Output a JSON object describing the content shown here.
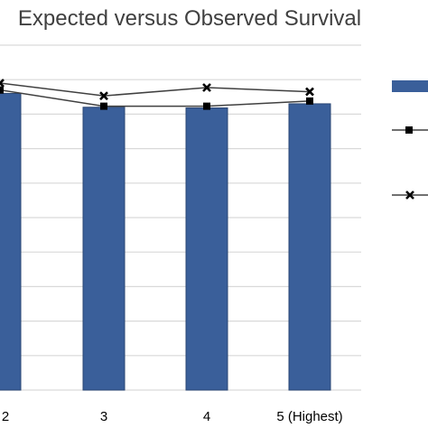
{
  "chart_data": {
    "type": "bar",
    "title": "Expected versus Observed Survival",
    "categories": [
      "2",
      "3",
      "4",
      "5 (Highest)"
    ],
    "ylim": [
      0,
      1
    ],
    "grid": true,
    "legend_position": "right",
    "series": [
      {
        "type": "bar",
        "values": [
          0.86,
          0.82,
          0.818,
          0.83
        ],
        "color": "#3a5f9a"
      },
      {
        "type": "line",
        "marker": "square",
        "values": [
          0.87,
          0.823,
          0.823,
          0.838
        ],
        "color": "#404040"
      },
      {
        "type": "line",
        "marker": "x",
        "values": [
          0.89,
          0.853,
          0.877,
          0.865
        ],
        "color": "#404040"
      }
    ]
  }
}
